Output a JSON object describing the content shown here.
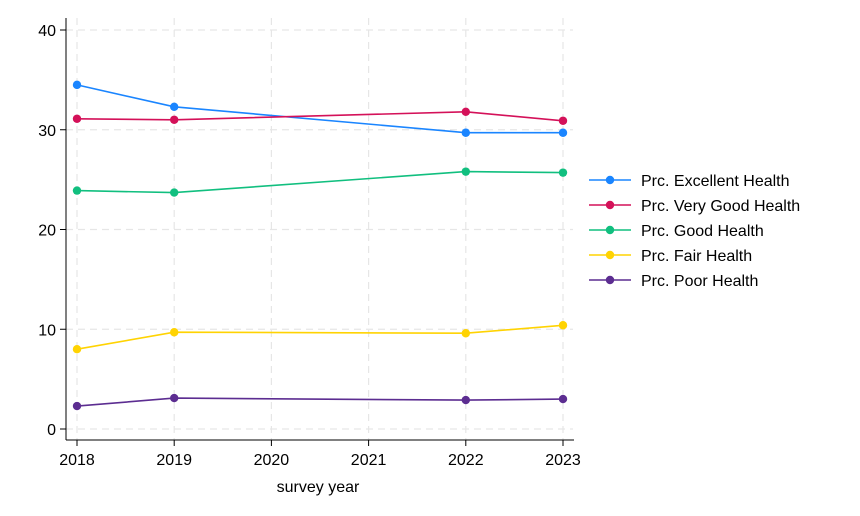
{
  "chart_data": {
    "type": "line",
    "xlabel": "survey year",
    "ylabel": "",
    "xlim": [
      2018,
      2023
    ],
    "ylim": [
      0,
      40
    ],
    "x_ticks": [
      2018,
      2019,
      2020,
      2021,
      2022,
      2023
    ],
    "y_ticks": [
      0,
      10,
      20,
      30,
      40
    ],
    "grid": true,
    "legend_position": "right",
    "series": [
      {
        "name": "Prc. Excellent Health",
        "color": "#1a85ff",
        "x": [
          2018,
          2019,
          2022,
          2023
        ],
        "values": [
          34.5,
          32.3,
          29.7,
          29.7
        ]
      },
      {
        "name": "Prc. Very Good Health",
        "color": "#d41159",
        "x": [
          2018,
          2019,
          2022,
          2023
        ],
        "values": [
          31.1,
          31.0,
          31.8,
          30.9
        ]
      },
      {
        "name": "Prc. Good Health",
        "color": "#11bf7f",
        "x": [
          2018,
          2019,
          2022,
          2023
        ],
        "values": [
          23.9,
          23.7,
          25.8,
          25.7
        ]
      },
      {
        "name": "Prc. Fair Health",
        "color": "#ffd302",
        "x": [
          2018,
          2019,
          2022,
          2023
        ],
        "values": [
          8.0,
          9.7,
          9.6,
          10.4
        ]
      },
      {
        "name": "Prc. Poor Health",
        "color": "#5c2d91",
        "x": [
          2018,
          2019,
          2022,
          2023
        ],
        "values": [
          2.3,
          3.1,
          2.9,
          3.0
        ]
      }
    ]
  }
}
